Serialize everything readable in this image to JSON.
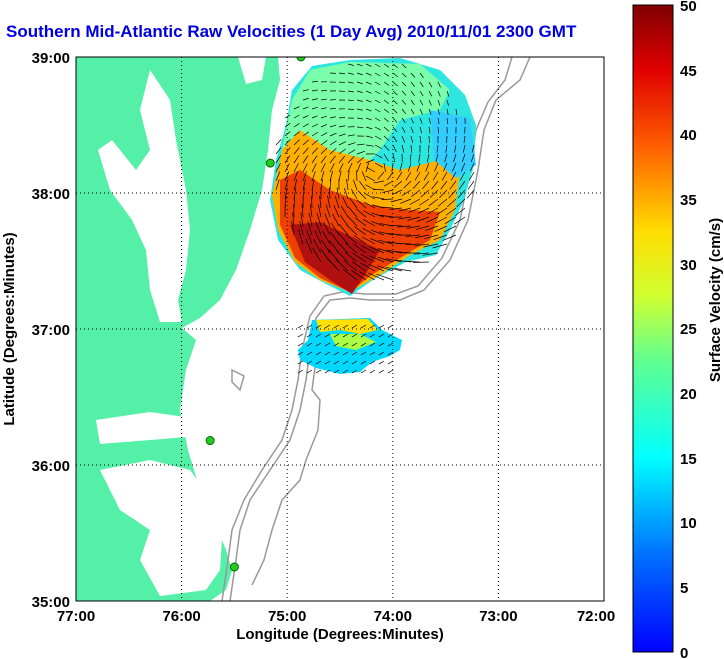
{
  "title": "Southern Mid-Atlantic Raw Velocities (1 Day Avg) 2010/11/01 2300 GMT",
  "axes": {
    "xlabel": "Longitude (Degrees:Minutes)",
    "ylabel": "Latitude (Degrees:Minutes)",
    "xticks": [
      "77:00",
      "76:00",
      "75:00",
      "74:00",
      "73:00",
      "72:00"
    ],
    "yticks": [
      "39:00",
      "38:00",
      "37:00",
      "36:00",
      "35:00"
    ],
    "grid": true
  },
  "colorbar": {
    "label": "Surface Velocity (cm/s)",
    "ticks": [
      "50",
      "45",
      "40",
      "35",
      "30",
      "25",
      "20",
      "15",
      "10",
      "5",
      "0"
    ],
    "min": 0,
    "max": 50,
    "colormap": "jet"
  },
  "colors": {
    "land": "#55f0a8",
    "title": "#0000e0",
    "bathymetry": "#999999",
    "station": "#22cc22"
  },
  "chart_data": {
    "type": "heatmap",
    "x_range": [
      -77,
      -72
    ],
    "y_range": [
      35,
      39
    ],
    "units": "cm/s",
    "stations": [
      {
        "lon": -74.87,
        "lat": 39.0
      },
      {
        "lon": -75.16,
        "lat": 38.22
      },
      {
        "lon": -75.73,
        "lat": 36.18
      },
      {
        "lon": -75.5,
        "lat": 35.25
      }
    ]
  }
}
